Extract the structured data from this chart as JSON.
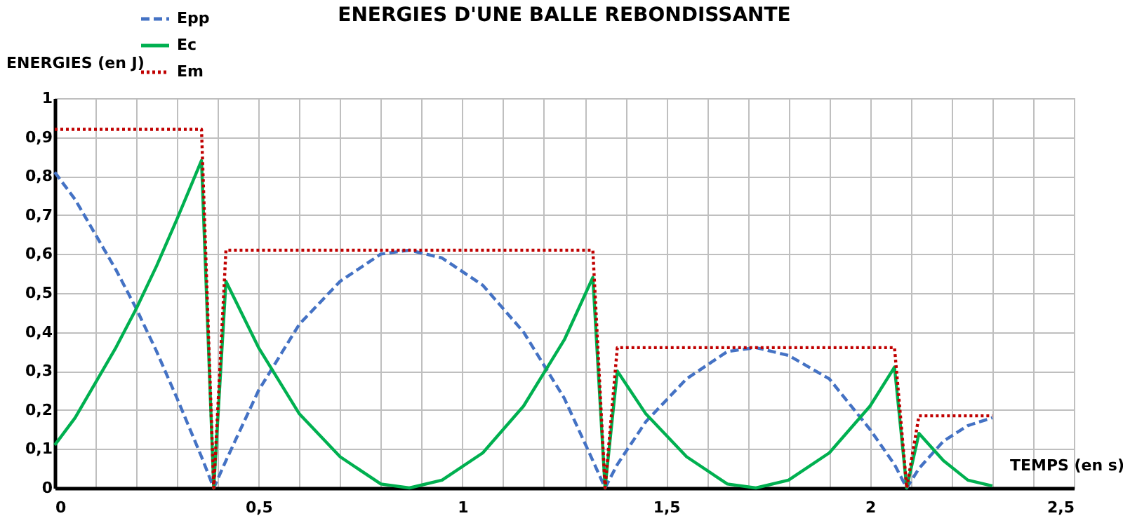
{
  "chart_data": {
    "type": "line",
    "title": "ENERGIES D'UNE BALLE REBONDISSANTE",
    "xlabel": "TEMPS (en s)",
    "ylabel": "ENERGIES (en J)",
    "series": [
      {
        "name": "Epp",
        "color": "#4472c4",
        "line_style": "dashed",
        "x": [
          0,
          0.05,
          0.1,
          0.15,
          0.2,
          0.25,
          0.3,
          0.36,
          0.39,
          0.42,
          0.5,
          0.6,
          0.7,
          0.8,
          0.87,
          0.95,
          1.05,
          1.15,
          1.25,
          1.32,
          1.35,
          1.38,
          1.45,
          1.55,
          1.65,
          1.72,
          1.8,
          1.9,
          2.0,
          2.06,
          2.09,
          2.12,
          2.18,
          2.24,
          2.3
        ],
        "values": [
          0.81,
          0.74,
          0.65,
          0.56,
          0.46,
          0.35,
          0.23,
          0.08,
          0,
          0.07,
          0.25,
          0.42,
          0.53,
          0.6,
          0.61,
          0.59,
          0.52,
          0.4,
          0.23,
          0.07,
          0,
          0.06,
          0.17,
          0.28,
          0.35,
          0.36,
          0.34,
          0.28,
          0.15,
          0.06,
          0,
          0.05,
          0.12,
          0.16,
          0.18
        ]
      },
      {
        "name": "Ec",
        "color": "#00b050",
        "line_style": "solid",
        "x": [
          0,
          0.05,
          0.1,
          0.15,
          0.2,
          0.25,
          0.3,
          0.36,
          0.39,
          0.42,
          0.5,
          0.6,
          0.7,
          0.8,
          0.87,
          0.95,
          1.05,
          1.15,
          1.25,
          1.32,
          1.35,
          1.38,
          1.45,
          1.55,
          1.65,
          1.72,
          1.8,
          1.9,
          2.0,
          2.06,
          2.09,
          2.12,
          2.18,
          2.24,
          2.3
        ],
        "values": [
          0.11,
          0.18,
          0.27,
          0.36,
          0.46,
          0.57,
          0.69,
          0.84,
          0,
          0.53,
          0.36,
          0.19,
          0.08,
          0.01,
          0,
          0.02,
          0.09,
          0.21,
          0.38,
          0.54,
          0,
          0.3,
          0.19,
          0.08,
          0.01,
          0,
          0.02,
          0.09,
          0.21,
          0.31,
          0,
          0.14,
          0.07,
          0.02,
          0.005
        ]
      },
      {
        "name": "Em",
        "color": "#c00000",
        "line_style": "dotted",
        "x": [
          0,
          0.36,
          0.39,
          0.42,
          1.32,
          1.35,
          1.38,
          2.06,
          2.09,
          2.12,
          2.3
        ],
        "values": [
          0.92,
          0.92,
          0,
          0.61,
          0.61,
          0,
          0.36,
          0.36,
          0,
          0.185,
          0.185
        ]
      }
    ],
    "xlim": [
      0,
      2.5
    ],
    "xticks": [
      0,
      {
        "value": 0.1,
        "label": null
      },
      {
        "value": 0.2,
        "label": null
      },
      {
        "value": 0.3,
        "label": null
      },
      {
        "value": 0.4,
        "label": null
      },
      {
        "value": 0.5,
        "label": "0,5"
      },
      {
        "value": 0.6,
        "label": null
      },
      {
        "value": 0.7,
        "label": null
      },
      {
        "value": 0.8,
        "label": null
      },
      {
        "value": 0.9,
        "label": null
      },
      1,
      {
        "value": 1.1,
        "label": null
      },
      {
        "value": 1.2,
        "label": null
      },
      {
        "value": 1.3,
        "label": null
      },
      {
        "value": 1.4,
        "label": null
      },
      {
        "value": 1.5,
        "label": "1,5"
      },
      {
        "value": 1.6,
        "label": null
      },
      {
        "value": 1.7,
        "label": null
      },
      {
        "value": 1.8,
        "label": null
      },
      {
        "value": 1.9,
        "label": null
      },
      2,
      {
        "value": 2.1,
        "label": null
      },
      {
        "value": 2.2,
        "label": null
      },
      {
        "value": 2.3,
        "label": null
      },
      {
        "value": 2.4,
        "label": null
      },
      {
        "value": 2.5,
        "label": "2,5"
      }
    ],
    "ylim": [
      0,
      1
    ],
    "yticks": [
      0,
      {
        "value": 0.1,
        "label": "0,1"
      },
      {
        "value": 0.2,
        "label": "0,2"
      },
      {
        "value": 0.3,
        "label": "0,3"
      },
      {
        "value": 0.4,
        "label": "0,4"
      },
      {
        "value": 0.5,
        "label": "0,5"
      },
      {
        "value": 0.6,
        "label": "0,6"
      },
      {
        "value": 0.7,
        "label": "0,7"
      },
      {
        "value": 0.8,
        "label": "0,8"
      },
      {
        "value": 0.9,
        "label": "0,9"
      },
      1
    ],
    "grid": true,
    "legend": "top left",
    "marker": "none"
  }
}
